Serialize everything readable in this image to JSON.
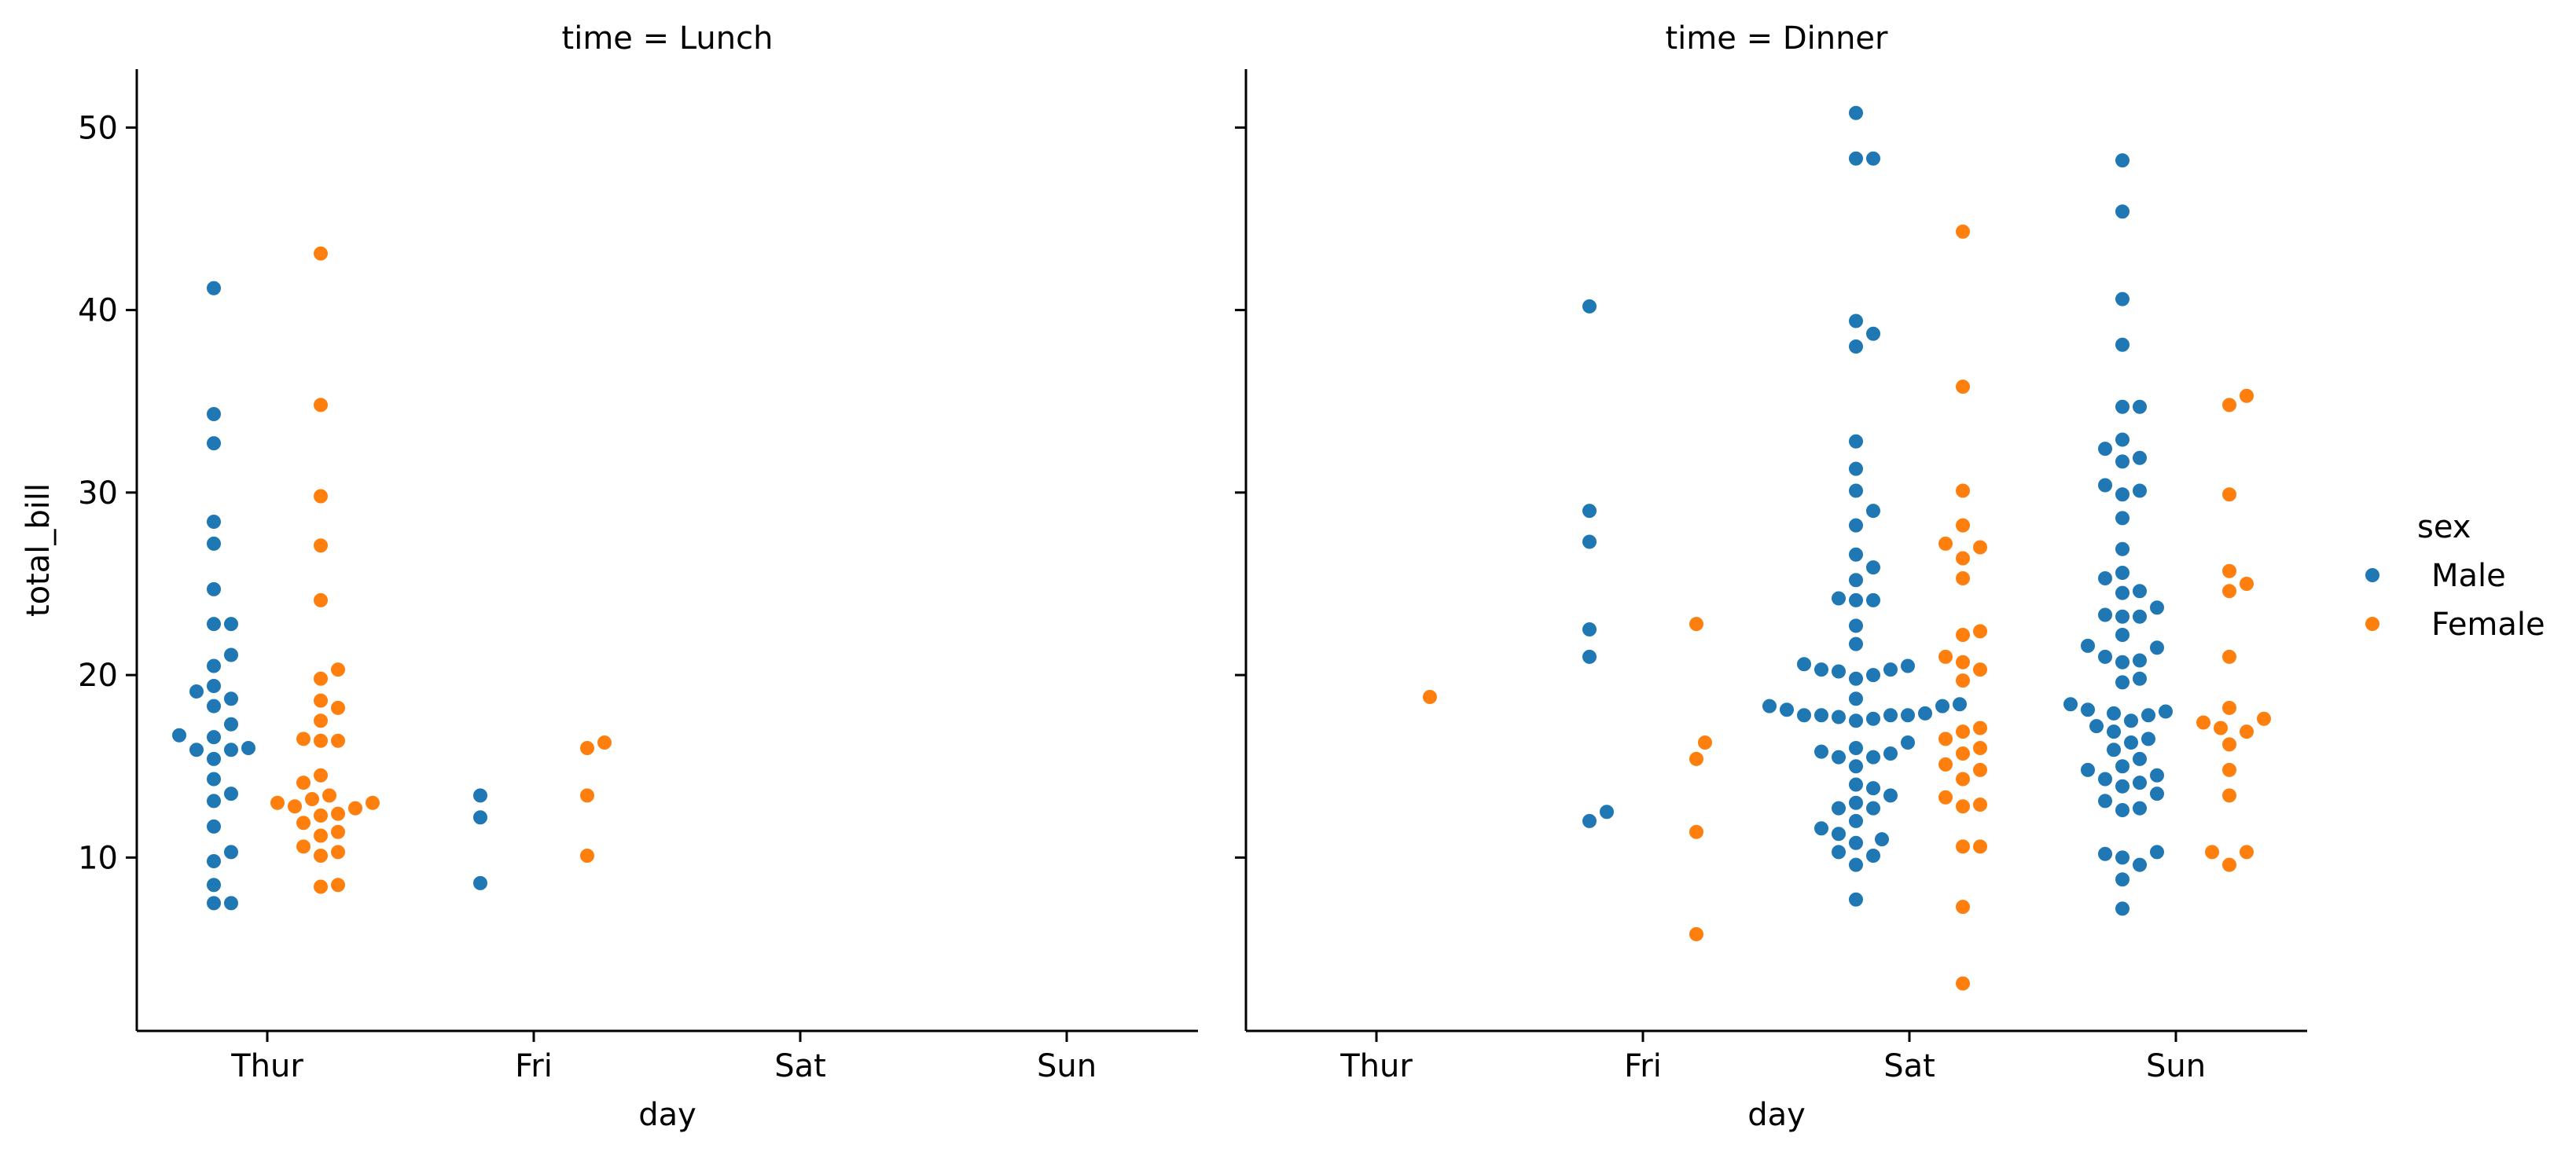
{
  "chart_data": {
    "type": "scatter",
    "subtype": "swarm",
    "ylabel": "total_bill",
    "y_ticks": [
      10,
      20,
      30,
      40,
      50
    ],
    "ylim": [
      0.5,
      53.2
    ],
    "categories": [
      "Thur",
      "Fri",
      "Sat",
      "Sun"
    ],
    "legend": {
      "title": "sex",
      "placement": "right",
      "entries": [
        {
          "name": "Male",
          "color": "#1f77b4"
        },
        {
          "name": "Female",
          "color": "#ff7f0e"
        }
      ]
    },
    "colors": {
      "Male": "#1f77b4",
      "Female": "#ff7f0e"
    },
    "grid": false,
    "facets": [
      {
        "title": "time = Lunch",
        "xlabel": "day",
        "series": [
          {
            "name": "Male",
            "points": [
              {
                "x": "Thur",
                "y": [
                  41.2,
                  34.3,
                  32.7,
                  28.4,
                  27.2,
                  24.7,
                  22.8,
                  22.8,
                  21.1,
                  20.5,
                  19.4,
                  19.1,
                  18.7,
                  18.3,
                  17.3,
                  16.7,
                  16.6,
                  16.0,
                  15.9,
                  15.9,
                  15.4,
                  14.3,
                  13.5,
                  13.1,
                  11.7,
                  10.3,
                  9.8,
                  8.5,
                  7.5,
                  7.5
                ]
              },
              {
                "x": "Fri",
                "y": [
                  13.4,
                  12.2,
                  8.6
                ]
              }
            ]
          },
          {
            "name": "Female",
            "points": [
              {
                "x": "Thur",
                "y": [
                  43.1,
                  34.8,
                  29.8,
                  27.1,
                  24.1,
                  20.3,
                  19.8,
                  18.6,
                  18.2,
                  17.5,
                  16.5,
                  16.4,
                  16.4,
                  14.5,
                  14.1,
                  13.4,
                  13.2,
                  13.0,
                  13.0,
                  12.8,
                  12.7,
                  12.4,
                  12.3,
                  11.9,
                  11.4,
                  11.2,
                  10.6,
                  10.3,
                  10.1,
                  8.5,
                  8.4
                ]
              },
              {
                "x": "Fri",
                "y": [
                  16.3,
                  16.0,
                  13.4,
                  10.1
                ]
              }
            ]
          }
        ]
      },
      {
        "title": "time = Dinner",
        "xlabel": "day",
        "series": [
          {
            "name": "Male",
            "points": [
              {
                "x": "Fri",
                "y": [
                  40.2,
                  29.0,
                  27.3,
                  22.5,
                  21.0,
                  12.5,
                  12.0
                ]
              },
              {
                "x": "Sat",
                "y": [
                  50.8,
                  48.3,
                  48.3,
                  39.4,
                  38.7,
                  38.0,
                  32.8,
                  31.3,
                  30.1,
                  29.0,
                  28.2,
                  26.6,
                  25.9,
                  25.2,
                  24.2,
                  24.1,
                  24.1,
                  22.7,
                  21.7,
                  20.6,
                  20.5,
                  20.3,
                  20.3,
                  20.2,
                  20.0,
                  19.8,
                  18.7,
                  18.4,
                  18.3,
                  18.3,
                  18.1,
                  17.9,
                  17.8,
                  17.8,
                  17.8,
                  17.8,
                  17.7,
                  17.6,
                  17.5,
                  16.3,
                  16.0,
                  15.8,
                  15.7,
                  15.5,
                  15.5,
                  15.0,
                  14.0,
                  13.8,
                  13.4,
                  13.0,
                  12.7,
                  12.7,
                  12.0,
                  11.6,
                  11.3,
                  11.0,
                  10.8,
                  10.3,
                  10.1,
                  9.6,
                  7.7
                ]
              },
              {
                "x": "Sun",
                "y": [
                  48.2,
                  45.4,
                  40.6,
                  38.1,
                  34.7,
                  34.7,
                  32.9,
                  32.4,
                  31.9,
                  31.7,
                  30.4,
                  30.1,
                  29.9,
                  28.6,
                  26.9,
                  25.6,
                  25.3,
                  24.6,
                  24.5,
                  23.7,
                  23.3,
                  23.2,
                  23.2,
                  22.2,
                  21.6,
                  21.5,
                  21.0,
                  20.8,
                  20.7,
                  19.8,
                  19.6,
                  18.4,
                  18.1,
                  18.0,
                  17.9,
                  17.8,
                  17.5,
                  17.2,
                  16.9,
                  16.5,
                  16.3,
                  15.9,
                  15.4,
                  15.0,
                  14.8,
                  14.5,
                  14.3,
                  14.1,
                  13.9,
                  13.5,
                  13.1,
                  12.7,
                  12.6,
                  10.3,
                  10.2,
                  10.0,
                  9.6,
                  8.8,
                  7.2
                ]
              }
            ]
          },
          {
            "name": "Female",
            "points": [
              {
                "x": "Thur",
                "y": [
                  18.8
                ]
              },
              {
                "x": "Fri",
                "y": [
                  22.8,
                  16.3,
                  15.4,
                  11.4,
                  5.8
                ]
              },
              {
                "x": "Sat",
                "y": [
                  44.3,
                  35.8,
                  30.1,
                  28.2,
                  27.2,
                  27.0,
                  26.4,
                  25.3,
                  22.4,
                  22.2,
                  21.0,
                  20.7,
                  20.3,
                  19.7,
                  17.1,
                  16.9,
                  16.5,
                  16.0,
                  15.7,
                  15.1,
                  14.8,
                  14.3,
                  13.3,
                  12.9,
                  12.8,
                  10.6,
                  10.6,
                  7.3,
                  3.1
                ]
              },
              {
                "x": "Sun",
                "y": [
                  35.3,
                  34.8,
                  29.9,
                  25.7,
                  25.0,
                  24.6,
                  21.0,
                  18.2,
                  17.6,
                  17.4,
                  17.1,
                  16.9,
                  16.2,
                  14.8,
                  13.4,
                  10.3,
                  10.3,
                  9.6
                ]
              }
            ]
          }
        ]
      }
    ]
  }
}
